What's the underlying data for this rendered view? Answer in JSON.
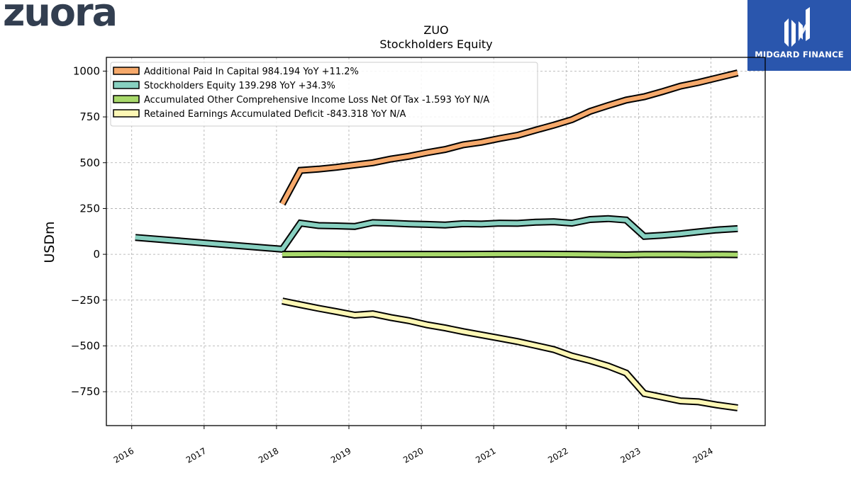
{
  "brand": {
    "left_logo": "zuora",
    "right_logo": "MIDGARD FINANCE",
    "right_logo_bg": "#2a56ad"
  },
  "chart_data": {
    "type": "line",
    "title": "ZUO",
    "subtitle": "Stockholders  Equity",
    "ylabel": "USDm",
    "xlabel": "",
    "ylim": [
      -935,
      1075
    ],
    "xlim": [
      2015.65,
      2024.75
    ],
    "yticks": [
      -750,
      -500,
      -250,
      0,
      250,
      500,
      750,
      1000
    ],
    "ytick_labels": [
      "−750",
      "−500",
      "−250",
      "0",
      "250",
      "500",
      "750",
      "1000"
    ],
    "xticks": [
      2016,
      2017,
      2018,
      2019,
      2020,
      2021,
      2022,
      2023,
      2024
    ],
    "xtick_labels": [
      "2016",
      "2017",
      "2018",
      "2019",
      "2020",
      "2021",
      "2022",
      "2023",
      "2024"
    ],
    "grid": true,
    "legend_position": "top-left",
    "series": [
      {
        "name": "Additional Paid In Capital  984.194 YoY +11.2%",
        "color": "#f6a96b",
        "points": [
          [
            2018.08,
            275
          ],
          [
            2018.33,
            458
          ],
          [
            2018.58,
            465
          ],
          [
            2018.83,
            475
          ],
          [
            2019.08,
            488
          ],
          [
            2019.33,
            500
          ],
          [
            2019.58,
            520
          ],
          [
            2019.83,
            535
          ],
          [
            2020.08,
            555
          ],
          [
            2020.33,
            572
          ],
          [
            2020.58,
            598
          ],
          [
            2020.83,
            612
          ],
          [
            2021.08,
            632
          ],
          [
            2021.33,
            650
          ],
          [
            2021.58,
            678
          ],
          [
            2021.83,
            705
          ],
          [
            2022.08,
            735
          ],
          [
            2022.33,
            780
          ],
          [
            2022.58,
            812
          ],
          [
            2022.83,
            842
          ],
          [
            2023.08,
            860
          ],
          [
            2023.33,
            888
          ],
          [
            2023.58,
            918
          ],
          [
            2023.83,
            938
          ],
          [
            2024.08,
            962
          ],
          [
            2024.37,
            990
          ]
        ]
      },
      {
        "name": "Stockholders Equity  139.298 YoY +34.3%",
        "color": "#87d0c0",
        "points": [
          [
            2016.05,
            92
          ],
          [
            2018.08,
            28
          ],
          [
            2018.33,
            170
          ],
          [
            2018.58,
            157
          ],
          [
            2018.83,
            155
          ],
          [
            2019.08,
            152
          ],
          [
            2019.33,
            173
          ],
          [
            2019.58,
            170
          ],
          [
            2019.83,
            166
          ],
          [
            2020.08,
            163
          ],
          [
            2020.33,
            160
          ],
          [
            2020.58,
            167
          ],
          [
            2020.83,
            165
          ],
          [
            2021.08,
            170
          ],
          [
            2021.33,
            169
          ],
          [
            2021.58,
            175
          ],
          [
            2021.83,
            178
          ],
          [
            2022.08,
            170
          ],
          [
            2022.33,
            190
          ],
          [
            2022.58,
            195
          ],
          [
            2022.83,
            187
          ],
          [
            2023.08,
            98
          ],
          [
            2023.33,
            104
          ],
          [
            2023.58,
            112
          ],
          [
            2023.83,
            123
          ],
          [
            2024.08,
            133
          ],
          [
            2024.37,
            140
          ]
        ]
      },
      {
        "name": "Accumulated Other Comprehensive Income Loss Net Of Tax  -1.593 YoY N/A",
        "color": "#a8d96b",
        "points": [
          [
            2018.08,
            0
          ],
          [
            2018.58,
            1
          ],
          [
            2019.08,
            0
          ],
          [
            2019.58,
            0
          ],
          [
            2020.08,
            0
          ],
          [
            2020.58,
            0
          ],
          [
            2021.08,
            1
          ],
          [
            2021.58,
            1
          ],
          [
            2022.08,
            0
          ],
          [
            2022.58,
            -2
          ],
          [
            2022.83,
            -3
          ],
          [
            2023.08,
            -1
          ],
          [
            2023.58,
            -1
          ],
          [
            2023.83,
            -2
          ],
          [
            2024.08,
            -1
          ],
          [
            2024.37,
            -2
          ]
        ]
      },
      {
        "name": "Retained Earnings Accumulated Deficit  -843.318 YoY N/A",
        "color": "#fdf7b5",
        "points": [
          [
            2018.08,
            -255
          ],
          [
            2018.33,
            -275
          ],
          [
            2018.58,
            -295
          ],
          [
            2018.83,
            -313
          ],
          [
            2019.08,
            -332
          ],
          [
            2019.33,
            -325
          ],
          [
            2019.58,
            -345
          ],
          [
            2019.83,
            -362
          ],
          [
            2020.08,
            -385
          ],
          [
            2020.33,
            -402
          ],
          [
            2020.58,
            -422
          ],
          [
            2020.83,
            -440
          ],
          [
            2021.08,
            -458
          ],
          [
            2021.33,
            -476
          ],
          [
            2021.58,
            -498
          ],
          [
            2021.83,
            -520
          ],
          [
            2022.08,
            -555
          ],
          [
            2022.33,
            -580
          ],
          [
            2022.58,
            -610
          ],
          [
            2022.83,
            -648
          ],
          [
            2023.08,
            -760
          ],
          [
            2023.33,
            -780
          ],
          [
            2023.58,
            -800
          ],
          [
            2023.83,
            -805
          ],
          [
            2024.08,
            -822
          ],
          [
            2024.37,
            -838
          ]
        ]
      }
    ]
  }
}
